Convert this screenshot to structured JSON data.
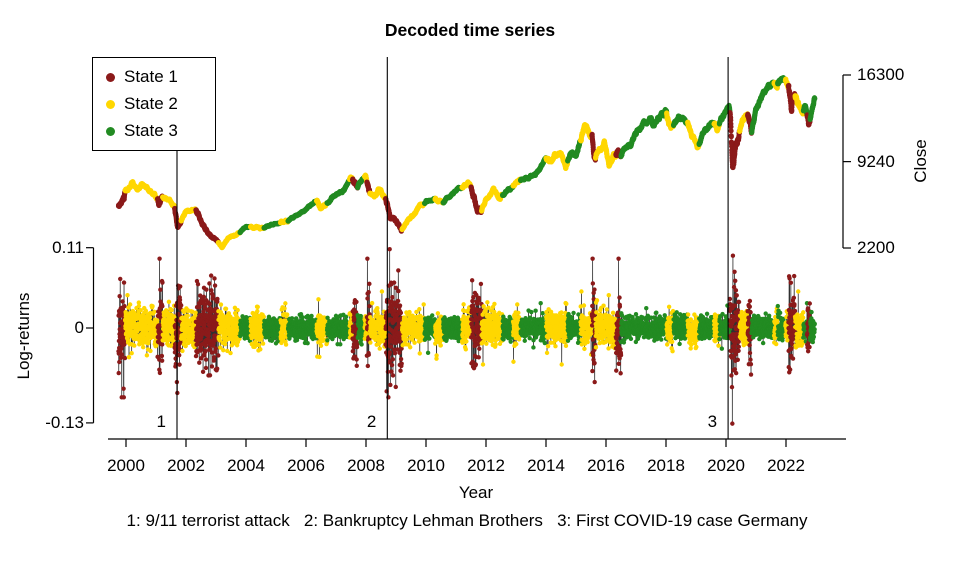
{
  "title": "Decoded time series",
  "legend": {
    "items": [
      {
        "label": "State 1",
        "color": "#8B1A1A"
      },
      {
        "label": "State 2",
        "color": "#FFD700"
      },
      {
        "label": "State 3",
        "color": "#228B22"
      }
    ]
  },
  "caption": {
    "text": "1: 9/11 terrorist attack   2: Bankruptcy Lehman Brothers   3: First COVID-19 case Germany"
  },
  "chart_data": {
    "type": "line+scatter",
    "title": "Decoded time series",
    "panels": [
      "Close price colored by decoded state (top)",
      "Log-returns colored by decoded state (bottom)"
    ],
    "x_axis": {
      "label": "Year",
      "ticks": [
        2000,
        2002,
        2004,
        2006,
        2008,
        2010,
        2012,
        2014,
        2016,
        2018,
        2020,
        2022
      ],
      "range": [
        1999.75,
        2022.96
      ]
    },
    "left_axis": {
      "label": "Log-returns",
      "ticks": [
        0.11,
        0,
        -0.13
      ],
      "tick_labels": [
        "0.11",
        "0",
        "-0.13"
      ]
    },
    "right_axis": {
      "label": "Close",
      "ticks": [
        16300,
        9240,
        2200
      ],
      "tick_labels": [
        "16300",
        "9240",
        "2200"
      ]
    },
    "events": [
      {
        "num": "1",
        "year": 2001.7,
        "label": "9/11 terrorist attack"
      },
      {
        "num": "2",
        "year": 2008.71,
        "label": "Bankruptcy Lehman Brothers"
      },
      {
        "num": "3",
        "year": 2020.07,
        "label": "First COVID-19 case Germany"
      }
    ],
    "states": {
      "colors": {
        "1": "#8B1A1A",
        "2": "#FFD700",
        "3": "#228B22"
      },
      "segments": [
        [
          1999.75,
          1999.97,
          1
        ],
        [
          1999.97,
          2001.05,
          2
        ],
        [
          2001.05,
          2001.22,
          1
        ],
        [
          2001.22,
          2001.62,
          2
        ],
        [
          2001.62,
          2001.84,
          1
        ],
        [
          2001.84,
          2002.33,
          2
        ],
        [
          2002.33,
          2003.08,
          1
        ],
        [
          2003.08,
          2003.8,
          2
        ],
        [
          2003.8,
          2004.15,
          3
        ],
        [
          2004.15,
          2004.6,
          2
        ],
        [
          2004.6,
          2005.15,
          3
        ],
        [
          2005.15,
          2005.4,
          2
        ],
        [
          2005.4,
          2006.35,
          3
        ],
        [
          2006.35,
          2006.7,
          2
        ],
        [
          2006.7,
          2007.45,
          3
        ],
        [
          2007.45,
          2007.55,
          2
        ],
        [
          2007.55,
          2007.72,
          1
        ],
        [
          2007.72,
          2007.95,
          3
        ],
        [
          2007.95,
          2008.03,
          2
        ],
        [
          2008.03,
          2008.13,
          1
        ],
        [
          2008.13,
          2008.65,
          2
        ],
        [
          2008.65,
          2009.2,
          1
        ],
        [
          2009.2,
          2009.95,
          2
        ],
        [
          2009.95,
          2010.3,
          3
        ],
        [
          2010.3,
          2010.57,
          2
        ],
        [
          2010.57,
          2011.2,
          3
        ],
        [
          2011.2,
          2011.5,
          2
        ],
        [
          2011.5,
          2011.85,
          1
        ],
        [
          2011.85,
          2012.55,
          2
        ],
        [
          2012.55,
          2012.9,
          3
        ],
        [
          2012.9,
          2013.15,
          2
        ],
        [
          2013.15,
          2014.0,
          3
        ],
        [
          2014.0,
          2014.72,
          2
        ],
        [
          2014.72,
          2015.15,
          3
        ],
        [
          2015.15,
          2015.53,
          2
        ],
        [
          2015.53,
          2015.65,
          1
        ],
        [
          2015.65,
          2016.33,
          2
        ],
        [
          2016.33,
          2016.5,
          1
        ],
        [
          2016.5,
          2018.02,
          3
        ],
        [
          2018.02,
          2018.25,
          2
        ],
        [
          2018.25,
          2018.72,
          3
        ],
        [
          2018.72,
          2019.1,
          2
        ],
        [
          2019.1,
          2019.6,
          3
        ],
        [
          2019.6,
          2019.78,
          2
        ],
        [
          2019.78,
          2020.13,
          3
        ],
        [
          2020.13,
          2020.45,
          1
        ],
        [
          2020.45,
          2020.72,
          2
        ],
        [
          2020.72,
          2020.85,
          1
        ],
        [
          2020.85,
          2021.6,
          3
        ],
        [
          2021.6,
          2021.72,
          2
        ],
        [
          2021.72,
          2021.98,
          3
        ],
        [
          2021.98,
          2022.08,
          2
        ],
        [
          2022.08,
          2022.3,
          1
        ],
        [
          2022.3,
          2022.58,
          2
        ],
        [
          2022.58,
          2022.7,
          3
        ],
        [
          2022.7,
          2022.8,
          1
        ],
        [
          2022.8,
          2022.96,
          3
        ]
      ]
    },
    "close_keypoints": [
      [
        1999.75,
        5560
      ],
      [
        1999.85,
        5950
      ],
      [
        1999.97,
        6850
      ],
      [
        2000.05,
        6950
      ],
      [
        2000.2,
        7600
      ],
      [
        2000.35,
        7100
      ],
      [
        2000.55,
        7400
      ],
      [
        2000.75,
        6900
      ],
      [
        2001.0,
        6400
      ],
      [
        2001.1,
        5900
      ],
      [
        2001.3,
        6200
      ],
      [
        2001.45,
        6100
      ],
      [
        2001.62,
        5600
      ],
      [
        2001.73,
        3800
      ],
      [
        2001.85,
        4500
      ],
      [
        2002.0,
        5200
      ],
      [
        2002.2,
        5300
      ],
      [
        2002.33,
        5350
      ],
      [
        2002.55,
        4300
      ],
      [
        2002.7,
        3700
      ],
      [
        2002.85,
        3000
      ],
      [
        2003.0,
        2900
      ],
      [
        2003.2,
        2250
      ],
      [
        2003.4,
        2950
      ],
      [
        2003.6,
        3200
      ],
      [
        2003.8,
        3450
      ],
      [
        2004.0,
        4000
      ],
      [
        2004.15,
        3850
      ],
      [
        2004.35,
        3950
      ],
      [
        2004.6,
        3820
      ],
      [
        2004.85,
        4100
      ],
      [
        2005.15,
        4300
      ],
      [
        2005.4,
        4450
      ],
      [
        2005.7,
        4900
      ],
      [
        2006.0,
        5400
      ],
      [
        2006.35,
        6100
      ],
      [
        2006.5,
        5500
      ],
      [
        2006.7,
        5800
      ],
      [
        2007.0,
        6600
      ],
      [
        2007.25,
        6900
      ],
      [
        2007.5,
        8050
      ],
      [
        2007.6,
        7400
      ],
      [
        2007.72,
        7550
      ],
      [
        2007.85,
        7800
      ],
      [
        2007.99,
        8050
      ],
      [
        2008.1,
        6800
      ],
      [
        2008.35,
        6550
      ],
      [
        2008.45,
        7050
      ],
      [
        2008.6,
        6400
      ],
      [
        2008.71,
        6050
      ],
      [
        2008.8,
        4800
      ],
      [
        2008.9,
        4650
      ],
      [
        2009.0,
        4400
      ],
      [
        2009.18,
        3700
      ],
      [
        2009.35,
        4300
      ],
      [
        2009.6,
        4950
      ],
      [
        2009.8,
        5600
      ],
      [
        2010.0,
        5950
      ],
      [
        2010.3,
        6250
      ],
      [
        2010.45,
        5950
      ],
      [
        2010.57,
        6000
      ],
      [
        2010.8,
        6350
      ],
      [
        2011.0,
        6950
      ],
      [
        2011.2,
        7100
      ],
      [
        2011.4,
        7500
      ],
      [
        2011.5,
        7300
      ],
      [
        2011.6,
        6300
      ],
      [
        2011.72,
        5250
      ],
      [
        2011.85,
        5500
      ],
      [
        2012.0,
        6050
      ],
      [
        2012.25,
        6950
      ],
      [
        2012.42,
        6250
      ],
      [
        2012.55,
        6550
      ],
      [
        2012.75,
        6950
      ],
      [
        2012.9,
        7200
      ],
      [
        2013.15,
        7750
      ],
      [
        2013.35,
        7850
      ],
      [
        2013.5,
        8100
      ],
      [
        2013.7,
        8350
      ],
      [
        2014.0,
        9550
      ],
      [
        2014.2,
        9350
      ],
      [
        2014.5,
        9950
      ],
      [
        2014.65,
        8700
      ],
      [
        2014.8,
        9700
      ],
      [
        2015.0,
        9800
      ],
      [
        2015.15,
        11000
      ],
      [
        2015.28,
        12300
      ],
      [
        2015.45,
        11400
      ],
      [
        2015.53,
        11500
      ],
      [
        2015.62,
        10000
      ],
      [
        2015.8,
        10250
      ],
      [
        2015.95,
        10750
      ],
      [
        2016.1,
        8850
      ],
      [
        2016.25,
        9750
      ],
      [
        2016.4,
        9950
      ],
      [
        2016.48,
        9500
      ],
      [
        2016.6,
        10250
      ],
      [
        2016.85,
        10700
      ],
      [
        2017.0,
        11550
      ],
      [
        2017.25,
        12150
      ],
      [
        2017.45,
        12650
      ],
      [
        2017.6,
        12250
      ],
      [
        2017.8,
        12950
      ],
      [
        2018.02,
        13400
      ],
      [
        2018.12,
        12300
      ],
      [
        2018.25,
        12100
      ],
      [
        2018.45,
        13050
      ],
      [
        2018.6,
        12650
      ],
      [
        2018.72,
        12350
      ],
      [
        2018.85,
        11500
      ],
      [
        2018.95,
        11000
      ],
      [
        2019.05,
        10450
      ],
      [
        2019.25,
        11550
      ],
      [
        2019.45,
        12200
      ],
      [
        2019.6,
        12350
      ],
      [
        2019.7,
        11700
      ],
      [
        2019.85,
        12650
      ],
      [
        2020.0,
        13250
      ],
      [
        2020.1,
        13700
      ],
      [
        2020.16,
        12900
      ],
      [
        2020.22,
        8450
      ],
      [
        2020.3,
        9900
      ],
      [
        2020.4,
        10700
      ],
      [
        2020.5,
        12300
      ],
      [
        2020.6,
        12850
      ],
      [
        2020.72,
        13050
      ],
      [
        2020.78,
        12650
      ],
      [
        2020.85,
        11600
      ],
      [
        2020.95,
        13000
      ],
      [
        2021.1,
        13950
      ],
      [
        2021.25,
        14700
      ],
      [
        2021.4,
        15350
      ],
      [
        2021.55,
        15650
      ],
      [
        2021.65,
        15500
      ],
      [
        2021.78,
        15850
      ],
      [
        2021.88,
        16250
      ],
      [
        2021.98,
        15900
      ],
      [
        2022.08,
        15200
      ],
      [
        2022.18,
        13300
      ],
      [
        2022.25,
        14050
      ],
      [
        2022.35,
        14450
      ],
      [
        2022.45,
        13850
      ],
      [
        2022.55,
        13050
      ],
      [
        2022.65,
        13700
      ],
      [
        2022.75,
        12150
      ],
      [
        2022.85,
        13300
      ],
      [
        2022.95,
        14400
      ]
    ],
    "return_sigma_by_state": {
      "1": 0.028,
      "2": 0.012,
      "3": 0.0075
    },
    "return_outliers": [
      [
        2000.05,
        0.045
      ],
      [
        2000.1,
        -0.04
      ],
      [
        2001.71,
        -0.089
      ],
      [
        2001.74,
        0.058
      ],
      [
        2002.57,
        -0.06
      ],
      [
        2002.6,
        0.055
      ],
      [
        2002.75,
        -0.065
      ],
      [
        2002.78,
        0.061
      ],
      [
        2003.02,
        -0.058
      ],
      [
        2008.06,
        -0.052
      ],
      [
        2008.09,
        0.049
      ],
      [
        2008.73,
        -0.06
      ],
      [
        2008.76,
        0.058
      ],
      [
        2008.79,
        0.108
      ],
      [
        2008.81,
        -0.078
      ],
      [
        2008.84,
        0.062
      ],
      [
        2008.9,
        -0.065
      ],
      [
        2009.0,
        0.055
      ],
      [
        2010.35,
        -0.042
      ],
      [
        2011.6,
        -0.055
      ],
      [
        2011.63,
        0.048
      ],
      [
        2011.66,
        -0.05
      ],
      [
        2015.62,
        -0.048
      ],
      [
        2016.49,
        -0.062
      ],
      [
        2020.18,
        -0.065
      ],
      [
        2020.2,
        -0.081
      ],
      [
        2020.21,
        -0.131
      ],
      [
        2020.23,
        0.099
      ],
      [
        2020.25,
        -0.058
      ],
      [
        2020.27,
        0.056
      ],
      [
        2020.31,
        -0.045
      ],
      [
        2022.12,
        0.068
      ],
      [
        2022.14,
        -0.057
      ],
      [
        2022.16,
        0.062
      ]
    ]
  }
}
